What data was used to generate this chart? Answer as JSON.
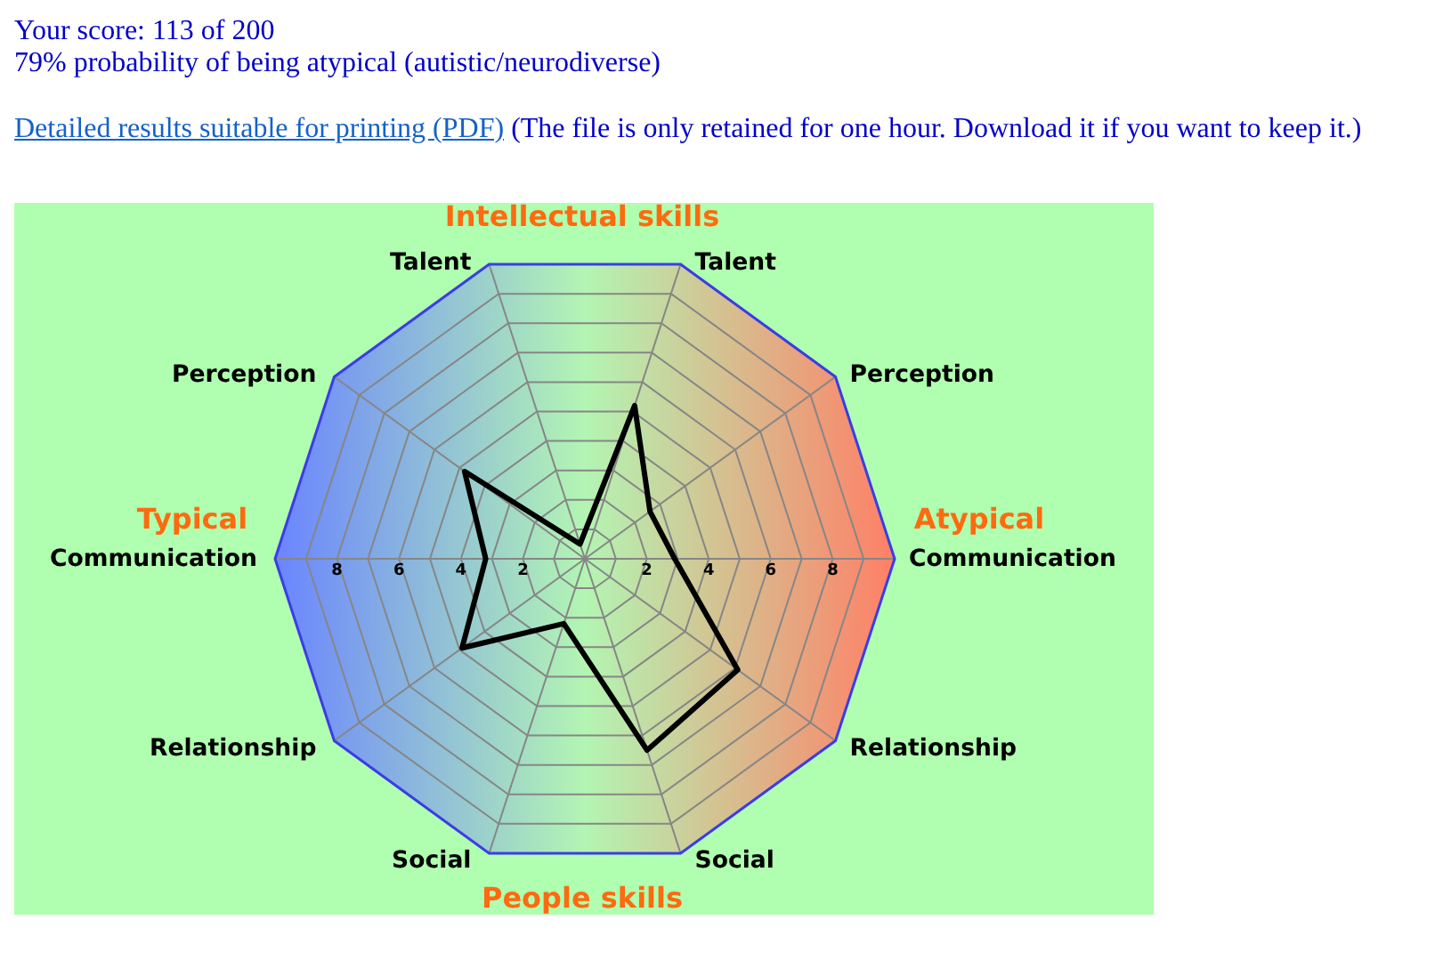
{
  "chart_data": {
    "type": "radar",
    "title": "Your score: 113 of 200",
    "subtitle": "79% probability of being atypical (autistic/neurodiverse)",
    "annotations": [
      "Detailed results suitable for printing (PDF)",
      "(The file is only retained for one hour. Download it if you want to keep it.)",
      "Intellectual skills",
      "Typical",
      "Atypical",
      "People skills"
    ],
    "categories": [
      "Talent",
      "Perception",
      "Communication",
      "Relationship",
      "Social",
      "Social",
      "Relationship",
      "Communication",
      "Perception",
      "Talent"
    ],
    "series": [
      {
        "color": "#000000",
        "values": [
          5.2,
          2.6,
          2.9,
          6.1,
          6.5,
          2.2,
          4.9,
          3.2,
          4.8,
          0.5
        ]
      }
    ],
    "ylim": [
      0,
      10
    ],
    "yticks": [
      8,
      6,
      4,
      2,
      2,
      4,
      6,
      8
    ],
    "grid": true,
    "marker": "none",
    "line_style": "solid"
  }
}
